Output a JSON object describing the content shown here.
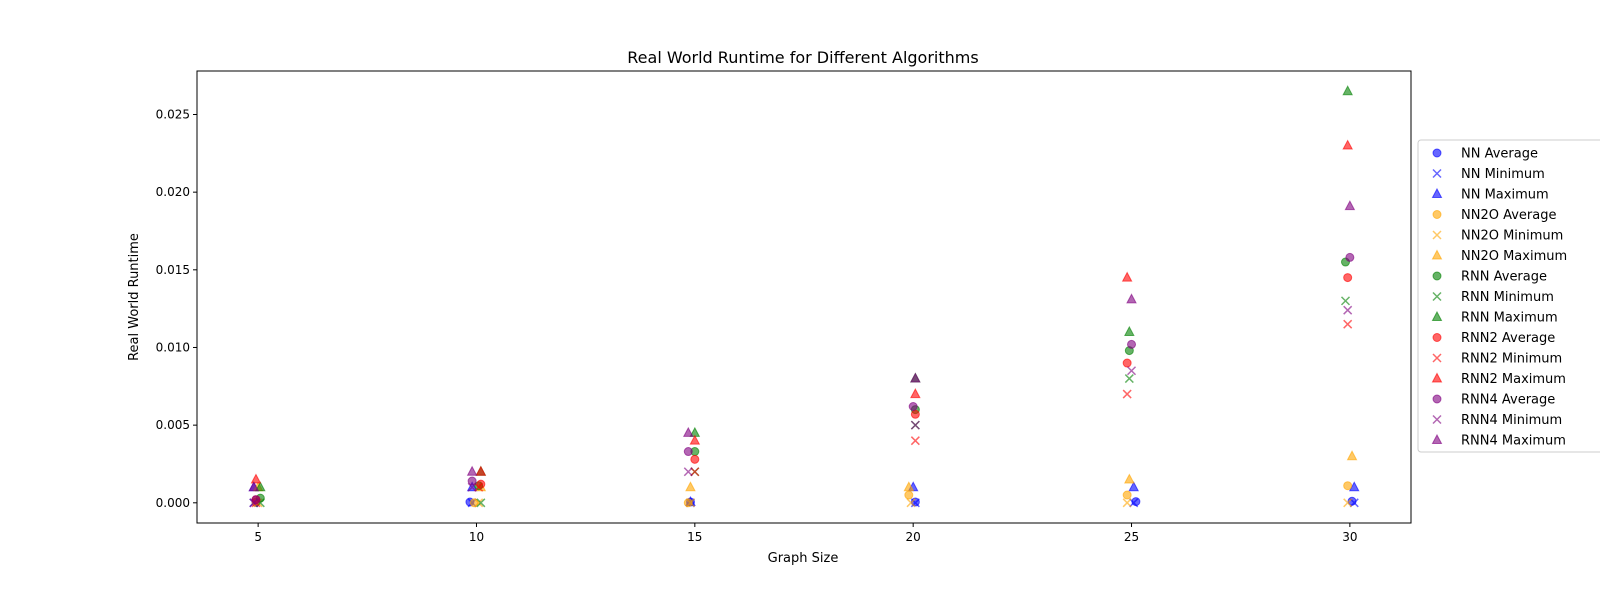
{
  "chart_data": {
    "type": "scatter",
    "title": "Real World Runtime for Different Algorithms",
    "xlabel": "Graph Size",
    "ylabel": "Real World Runtime",
    "xlim": [
      3.6,
      31.4
    ],
    "ylim": [
      -0.0013,
      0.0278
    ],
    "xticks": [
      "5",
      "10",
      "15",
      "20",
      "25",
      "30"
    ],
    "yticks": [
      "0.000",
      "0.005",
      "0.010",
      "0.015",
      "0.020",
      "0.025"
    ],
    "grid": false,
    "legend_position": "right",
    "series": [
      {
        "name": "NN Average",
        "marker": "circle",
        "color": "#0000ff",
        "x": [
          4.95,
          9.85,
          14.9,
          20.05,
          25.1,
          30.05
        ],
        "y": [
          3e-05,
          5e-05,
          5e-05,
          5e-05,
          8e-05,
          0.0001
        ]
      },
      {
        "name": "NN Minimum",
        "marker": "x",
        "color": "#0000ff",
        "x": [
          4.9,
          9.9,
          14.9,
          20.05,
          25.05,
          30.1
        ],
        "y": [
          0.0,
          0.0,
          0.0,
          0.0,
          0.0,
          0.0
        ]
      },
      {
        "name": "NN Maximum",
        "marker": "triangle",
        "color": "#0000ff",
        "x": [
          4.9,
          9.9,
          14.9,
          20.0,
          25.05,
          30.1
        ],
        "y": [
          0.001,
          0.001,
          5e-05,
          0.001,
          0.001,
          0.001
        ]
      },
      {
        "name": "NN2O Average",
        "marker": "circle",
        "color": "#ffa500",
        "x": [
          4.95,
          9.95,
          14.85,
          19.9,
          24.9,
          29.95
        ],
        "y": [
          5e-05,
          0.0,
          0.0,
          0.0005,
          0.0005,
          0.0011
        ]
      },
      {
        "name": "NN2O Minimum",
        "marker": "x",
        "color": "#ffa500",
        "x": [
          5.0,
          10.05,
          14.9,
          19.95,
          24.9,
          29.95
        ],
        "y": [
          0.0,
          0.0,
          0.0,
          0.0,
          0.0,
          0.0
        ]
      },
      {
        "name": "NN2O Maximum",
        "marker": "triangle",
        "color": "#ffa500",
        "x": [
          5.0,
          10.1,
          14.9,
          19.9,
          24.95,
          30.05
        ],
        "y": [
          0.001,
          0.001,
          0.001,
          0.001,
          0.0015,
          0.003
        ]
      },
      {
        "name": "RNN Average",
        "marker": "circle",
        "color": "#008000",
        "x": [
          5.05,
          10.05,
          15.0,
          20.05,
          24.95,
          29.9
        ],
        "y": [
          0.0003,
          0.0011,
          0.0033,
          0.006,
          0.0098,
          0.0155
        ]
      },
      {
        "name": "RNN Minimum",
        "marker": "x",
        "color": "#008000",
        "x": [
          5.05,
          10.1,
          15.0,
          20.05,
          24.95,
          29.9
        ],
        "y": [
          0.0,
          0.0,
          0.002,
          0.005,
          0.008,
          0.013
        ]
      },
      {
        "name": "RNN Maximum",
        "marker": "triangle",
        "color": "#008000",
        "x": [
          5.05,
          10.1,
          15.0,
          20.05,
          24.95,
          29.95
        ],
        "y": [
          0.001,
          0.002,
          0.0045,
          0.008,
          0.011,
          0.0265
        ]
      },
      {
        "name": "RNN2 Average",
        "marker": "circle",
        "color": "#ff0000",
        "x": [
          4.95,
          10.1,
          15.0,
          20.05,
          24.9,
          29.95
        ],
        "y": [
          0.0002,
          0.0012,
          0.0028,
          0.0057,
          0.009,
          0.0145
        ]
      },
      {
        "name": "RNN2 Minimum",
        "marker": "x",
        "color": "#ff0000",
        "x": [
          4.95,
          10.05,
          15.0,
          20.05,
          24.9,
          29.95
        ],
        "y": [
          0.0,
          0.001,
          0.002,
          0.004,
          0.007,
          0.0115
        ]
      },
      {
        "name": "RNN2 Maximum",
        "marker": "triangle",
        "color": "#ff0000",
        "x": [
          4.95,
          10.1,
          15.0,
          20.05,
          24.9,
          29.95
        ],
        "y": [
          0.0015,
          0.002,
          0.004,
          0.007,
          0.0145,
          0.023
        ]
      },
      {
        "name": "RNN4 Average",
        "marker": "circle",
        "color": "#800080",
        "x": [
          4.95,
          9.9,
          14.85,
          20.0,
          25.0,
          30.0
        ],
        "y": [
          0.0002,
          0.0014,
          0.0033,
          0.0062,
          0.0102,
          0.0158
        ]
      },
      {
        "name": "RNN4 Minimum",
        "marker": "x",
        "color": "#800080",
        "x": [
          4.9,
          9.9,
          14.85,
          20.05,
          25.0,
          29.95
        ],
        "y": [
          0.0,
          0.001,
          0.002,
          0.005,
          0.0085,
          0.0124
        ]
      },
      {
        "name": "RNN4 Maximum",
        "marker": "triangle",
        "color": "#800080",
        "x": [
          4.9,
          9.9,
          14.85,
          20.05,
          25.0,
          30.0
        ],
        "y": [
          0.001,
          0.002,
          0.0045,
          0.008,
          0.0131,
          0.0191
        ]
      }
    ]
  }
}
